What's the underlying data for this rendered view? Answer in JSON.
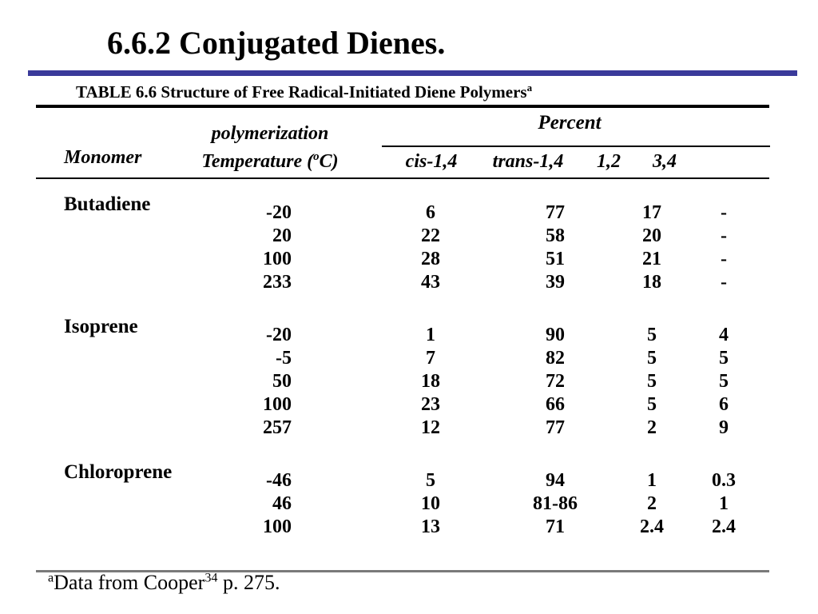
{
  "slide": {
    "title": "6.6.2 Conjugated Dienes.",
    "colors": {
      "accent_blue": "#3a3a9a",
      "rule_black": "#000000",
      "rule_gray": "#7a7a7a",
      "text": "#000000",
      "background": "#ffffff"
    }
  },
  "table": {
    "caption": {
      "text": "TABLE 6.6 Structure of Free Radical-Initiated Diene Polymers",
      "footnote_marker": "a"
    },
    "headers": {
      "monomer": "Monomer",
      "temperature_line1": "polymerization",
      "temperature_line2_prefix": "Temperature (",
      "temperature_degree_sup": "o",
      "temperature_line2_suffix": "C)",
      "percent_group": "Percent",
      "percent_columns": [
        "cis-1,4",
        "trans-1,4",
        "1,2",
        "3,4"
      ]
    },
    "rows": [
      {
        "monomer": "Butadiene",
        "temp": "-20",
        "cis14": "6",
        "trans14": "77",
        "v12": "17",
        "v34": "-"
      },
      {
        "monomer": "",
        "temp": "20",
        "cis14": "22",
        "trans14": "58",
        "v12": "20",
        "v34": "-"
      },
      {
        "monomer": "",
        "temp": "100",
        "cis14": "28",
        "trans14": "51",
        "v12": "21",
        "v34": "-"
      },
      {
        "monomer": "",
        "temp": "233",
        "cis14": "43",
        "trans14": "39",
        "v12": "18",
        "v34": "-"
      },
      {
        "monomer": "Isoprene",
        "temp": "-20",
        "cis14": "1",
        "trans14": "90",
        "v12": "5",
        "v34": "4"
      },
      {
        "monomer": "",
        "temp": "-5",
        "cis14": "7",
        "trans14": "82",
        "v12": "5",
        "v34": "5"
      },
      {
        "monomer": "",
        "temp": "50",
        "cis14": "18",
        "trans14": "72",
        "v12": "5",
        "v34": "5"
      },
      {
        "monomer": "",
        "temp": "100",
        "cis14": "23",
        "trans14": "66",
        "v12": "5",
        "v34": "6"
      },
      {
        "monomer": "",
        "temp": "257",
        "cis14": "12",
        "trans14": "77",
        "v12": "2",
        "v34": "9"
      },
      {
        "monomer": "Chloroprene",
        "temp": "-46",
        "cis14": "5",
        "trans14": "94",
        "v12": "1",
        "v34": "0.3"
      },
      {
        "monomer": "",
        "temp": "46",
        "cis14": "10",
        "trans14": "81-86",
        "v12": "2",
        "v34": "1"
      },
      {
        "monomer": "",
        "temp": "100",
        "cis14": "13",
        "trans14": "71",
        "v12": "2.4",
        "v34": "2.4"
      }
    ]
  },
  "footnote": {
    "marker": "a",
    "text_before_sup": "Data from Cooper",
    "reference_sup": "34",
    "text_after_sup": " p. 275."
  }
}
